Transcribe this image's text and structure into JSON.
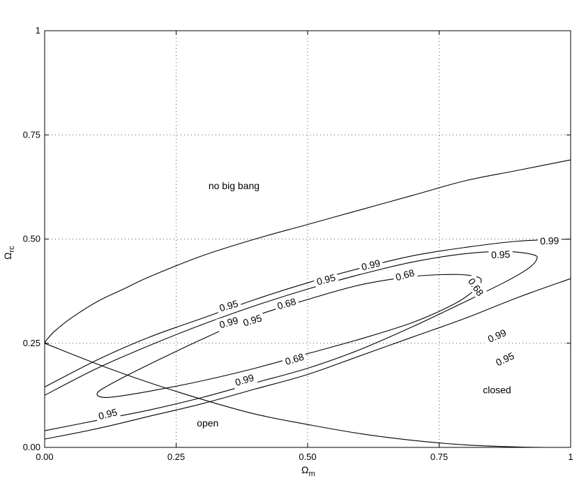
{
  "chart_data": {
    "type": "contour",
    "title": "",
    "xlabel": "Ω",
    "xlabel_sub": "m",
    "ylabel": "Ω",
    "ylabel_sub": "rc",
    "xlim": [
      0,
      1
    ],
    "ylim": [
      0,
      1
    ],
    "xticks": [
      0,
      0.25,
      0.5,
      0.75,
      1
    ],
    "xtick_labels": [
      "0.00",
      "0.25",
      "0.50",
      "0.75",
      "1"
    ],
    "yticks": [
      0,
      0.25,
      0.5,
      0.75,
      1
    ],
    "ytick_labels": [
      "0.00",
      "0.25",
      "0.50",
      "0.75",
      "1"
    ],
    "grid": true,
    "annotations": [
      {
        "text": "no big bang",
        "x": 0.36,
        "y": 0.62
      },
      {
        "text": "open",
        "x": 0.31,
        "y": 0.05
      },
      {
        "text": "closed",
        "x": 0.86,
        "y": 0.13
      }
    ],
    "boundary_lines": [
      {
        "name": "no-big-bang-boundary",
        "points": [
          [
            0,
            0.25
          ],
          [
            0.005,
            0.26
          ],
          [
            0.02,
            0.28
          ],
          [
            0.05,
            0.31
          ],
          [
            0.1,
            0.35
          ],
          [
            0.15,
            0.38
          ],
          [
            0.2,
            0.41
          ],
          [
            0.3,
            0.46
          ],
          [
            0.4,
            0.5
          ],
          [
            0.5,
            0.535
          ],
          [
            0.6,
            0.57
          ],
          [
            0.7,
            0.605
          ],
          [
            0.8,
            0.64
          ],
          [
            0.9,
            0.665
          ],
          [
            1.0,
            0.69
          ]
        ]
      },
      {
        "name": "flat-universe-line",
        "points": [
          [
            0,
            0.25
          ],
          [
            0.1,
            0.2
          ],
          [
            0.2,
            0.155
          ],
          [
            0.3,
            0.115
          ],
          [
            0.4,
            0.08
          ],
          [
            0.5,
            0.055
          ],
          [
            0.6,
            0.033
          ],
          [
            0.7,
            0.017
          ],
          [
            0.8,
            0.006
          ],
          [
            0.9,
            0.001
          ],
          [
            0.95,
            0.0
          ]
        ]
      }
    ],
    "contours": [
      {
        "level": "0.68",
        "closed": true,
        "points": [
          [
            0.82,
            0.41
          ],
          [
            0.78,
            0.415
          ],
          [
            0.7,
            0.41
          ],
          [
            0.6,
            0.39
          ],
          [
            0.5,
            0.355
          ],
          [
            0.4,
            0.315
          ],
          [
            0.3,
            0.26
          ],
          [
            0.2,
            0.2
          ],
          [
            0.13,
            0.155
          ],
          [
            0.1,
            0.13
          ],
          [
            0.12,
            0.12
          ],
          [
            0.2,
            0.135
          ],
          [
            0.3,
            0.16
          ],
          [
            0.4,
            0.19
          ],
          [
            0.5,
            0.225
          ],
          [
            0.6,
            0.26
          ],
          [
            0.7,
            0.3
          ],
          [
            0.78,
            0.345
          ],
          [
            0.82,
            0.38
          ],
          [
            0.83,
            0.4
          ],
          [
            0.82,
            0.41
          ]
        ]
      },
      {
        "level": "0.95",
        "closed": false,
        "points": [
          [
            0,
            0.125
          ],
          [
            0.1,
            0.19
          ],
          [
            0.2,
            0.245
          ],
          [
            0.3,
            0.295
          ],
          [
            0.4,
            0.34
          ],
          [
            0.5,
            0.38
          ],
          [
            0.6,
            0.415
          ],
          [
            0.7,
            0.445
          ],
          [
            0.8,
            0.465
          ],
          [
            0.88,
            0.47
          ],
          [
            0.93,
            0.462
          ],
          [
            0.935,
            0.45
          ],
          [
            0.92,
            0.43
          ],
          [
            0.88,
            0.4
          ],
          [
            0.8,
            0.35
          ],
          [
            0.7,
            0.29
          ],
          [
            0.6,
            0.235
          ],
          [
            0.5,
            0.19
          ],
          [
            0.4,
            0.155
          ],
          [
            0.3,
            0.12
          ],
          [
            0.2,
            0.09
          ],
          [
            0.1,
            0.065
          ],
          [
            0,
            0.04
          ]
        ]
      },
      {
        "level": "0.99",
        "closed": false,
        "points": [
          [
            0,
            0.145
          ],
          [
            0.1,
            0.21
          ],
          [
            0.2,
            0.265
          ],
          [
            0.3,
            0.31
          ],
          [
            0.4,
            0.355
          ],
          [
            0.5,
            0.395
          ],
          [
            0.6,
            0.43
          ],
          [
            0.7,
            0.46
          ],
          [
            0.8,
            0.48
          ],
          [
            0.9,
            0.495
          ],
          [
            1.0,
            0.5
          ]
        ]
      },
      {
        "level": "0.99",
        "closed": false,
        "points": [
          [
            1.0,
            0.405
          ],
          [
            0.9,
            0.36
          ],
          [
            0.8,
            0.31
          ],
          [
            0.7,
            0.265
          ],
          [
            0.6,
            0.22
          ],
          [
            0.5,
            0.175
          ],
          [
            0.4,
            0.14
          ],
          [
            0.3,
            0.105
          ],
          [
            0.2,
            0.075
          ],
          [
            0.1,
            0.045
          ],
          [
            0,
            0.02
          ]
        ]
      }
    ],
    "contour_labels": [
      {
        "text": "0.68",
        "x": 0.46,
        "y": 0.345,
        "angle": 16
      },
      {
        "text": "0.68",
        "x": 0.685,
        "y": 0.414,
        "angle": 16
      },
      {
        "text": "0.68",
        "x": 0.82,
        "y": 0.385,
        "angle": -55
      },
      {
        "text": "0.68",
        "x": 0.475,
        "y": 0.212,
        "angle": 17
      },
      {
        "text": "0.95",
        "x": 0.35,
        "y": 0.34,
        "angle": 16
      },
      {
        "text": "0.95",
        "x": 0.395,
        "y": 0.305,
        "angle": 17
      },
      {
        "text": "0.95",
        "x": 0.535,
        "y": 0.403,
        "angle": 15
      },
      {
        "text": "0.95",
        "x": 0.867,
        "y": 0.463,
        "angle": 3
      },
      {
        "text": "0.95",
        "x": 0.875,
        "y": 0.212,
        "angle": 25
      },
      {
        "text": "0.95",
        "x": 0.12,
        "y": 0.08,
        "angle": 14
      },
      {
        "text": "0.99",
        "x": 0.35,
        "y": 0.3,
        "angle": 16
      },
      {
        "text": "0.99",
        "x": 0.38,
        "y": 0.162,
        "angle": 17
      },
      {
        "text": "0.99",
        "x": 0.62,
        "y": 0.438,
        "angle": 14
      },
      {
        "text": "0.99",
        "x": 0.96,
        "y": 0.496,
        "angle": 2
      },
      {
        "text": "0.99",
        "x": 0.86,
        "y": 0.268,
        "angle": 24
      }
    ]
  }
}
